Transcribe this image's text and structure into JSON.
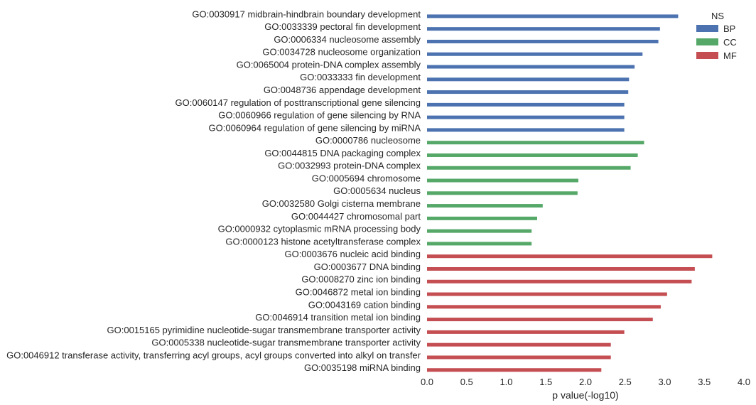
{
  "chart_data": {
    "type": "bar",
    "orientation": "horizontal",
    "xlabel": "p value(-log10)",
    "xlim": [
      0.0,
      4.0
    ],
    "xticks": [
      "0.0",
      "0.5",
      "1.0",
      "1.5",
      "2.0",
      "2.5",
      "3.0",
      "3.5",
      "4.0"
    ],
    "grid": false,
    "legend": {
      "title": "NS",
      "placement": "top-right",
      "entries": [
        {
          "name": "BP",
          "color": "#4c72b0"
        },
        {
          "name": "CC",
          "color": "#55a868"
        },
        {
          "name": "MF",
          "color": "#c44e52"
        }
      ]
    },
    "bars": [
      {
        "label": "GO:0030917 midbrain-hindbrain boundary development",
        "value": 3.17,
        "group": "BP"
      },
      {
        "label": "GO:0033339 pectoral fin development",
        "value": 2.94,
        "group": "BP"
      },
      {
        "label": "GO:0006334 nucleosome assembly",
        "value": 2.92,
        "group": "BP"
      },
      {
        "label": "GO:0034728 nucleosome organization",
        "value": 2.72,
        "group": "BP"
      },
      {
        "label": "GO:0065004 protein-DNA complex assembly",
        "value": 2.62,
        "group": "BP"
      },
      {
        "label": "GO:0033333 fin development",
        "value": 2.55,
        "group": "BP"
      },
      {
        "label": "GO:0048736 appendage development",
        "value": 2.54,
        "group": "BP"
      },
      {
        "label": "GO:0060147 regulation of posttranscriptional gene silencing",
        "value": 2.49,
        "group": "BP"
      },
      {
        "label": "GO:0060966 regulation of gene silencing by RNA",
        "value": 2.49,
        "group": "BP"
      },
      {
        "label": "GO:0060964 regulation of gene silencing by miRNA",
        "value": 2.49,
        "group": "BP"
      },
      {
        "label": "GO:0000786 nucleosome",
        "value": 2.74,
        "group": "CC"
      },
      {
        "label": "GO:0044815 DNA packaging complex",
        "value": 2.66,
        "group": "CC"
      },
      {
        "label": "GO:0032993 protein-DNA complex",
        "value": 2.57,
        "group": "CC"
      },
      {
        "label": "GO:0005694 chromosome",
        "value": 1.91,
        "group": "CC"
      },
      {
        "label": "GO:0005634 nucleus",
        "value": 1.9,
        "group": "CC"
      },
      {
        "label": "GO:0032580 Golgi cisterna membrane",
        "value": 1.46,
        "group": "CC"
      },
      {
        "label": "GO:0044427 chromosomal part",
        "value": 1.39,
        "group": "CC"
      },
      {
        "label": "GO:0000932 cytoplasmic mRNA processing body",
        "value": 1.32,
        "group": "CC"
      },
      {
        "label": "GO:0000123 histone acetyltransferase complex",
        "value": 1.32,
        "group": "CC"
      },
      {
        "label": "GO:0003676 nucleic acid binding",
        "value": 3.6,
        "group": "MF"
      },
      {
        "label": "GO:0003677 DNA binding",
        "value": 3.38,
        "group": "MF"
      },
      {
        "label": "GO:0008270 zinc ion binding",
        "value": 3.34,
        "group": "MF"
      },
      {
        "label": "GO:0046872 metal ion binding",
        "value": 3.03,
        "group": "MF"
      },
      {
        "label": "GO:0043169 cation binding",
        "value": 2.95,
        "group": "MF"
      },
      {
        "label": "GO:0046914 transition metal ion binding",
        "value": 2.85,
        "group": "MF"
      },
      {
        "label": "GO:0015165 pyrimidine nucleotide-sugar transmembrane transporter activity",
        "value": 2.49,
        "group": "MF"
      },
      {
        "label": "GO:0005338 nucleotide-sugar transmembrane transporter activity",
        "value": 2.32,
        "group": "MF"
      },
      {
        "label": "GO:0046912 transferase activity, transferring acyl groups, acyl groups converted into alkyl on transfer",
        "value": 2.32,
        "group": "MF"
      },
      {
        "label": "GO:0035198 miRNA binding",
        "value": 2.2,
        "group": "MF"
      }
    ]
  }
}
